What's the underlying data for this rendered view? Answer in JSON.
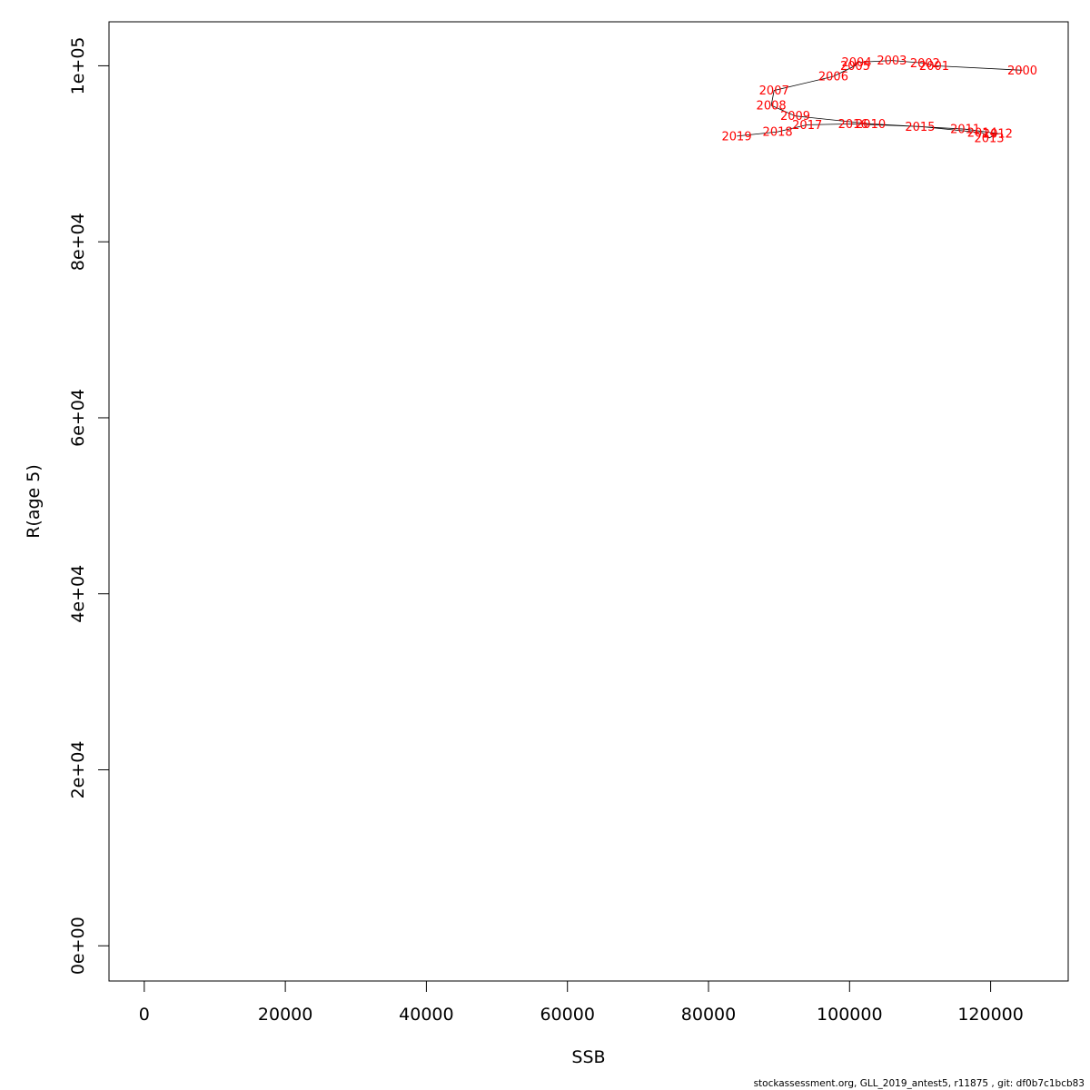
{
  "chart_data": {
    "type": "line",
    "title": "",
    "xlabel": "SSB",
    "ylabel": "R(age 5)",
    "xlim": [
      -5000,
      131000
    ],
    "ylim": [
      -4000,
      105000
    ],
    "x_ticks": [
      0,
      20000,
      40000,
      60000,
      80000,
      100000,
      120000
    ],
    "x_tick_labels": [
      "0",
      "20000",
      "40000",
      "60000",
      "80000",
      "100000",
      "120000"
    ],
    "y_ticks": [
      0,
      20000,
      40000,
      60000,
      80000,
      100000
    ],
    "y_tick_labels": [
      "0e+00",
      "2e+04",
      "4e+04",
      "6e+04",
      "8e+04",
      "1e+05"
    ],
    "grid": false,
    "line_color": "#000000",
    "label_color": "#ff0000",
    "series": [
      {
        "points": [
          {
            "label": "2000",
            "x": 124500,
            "y": 99500
          },
          {
            "label": "2001",
            "x": 112000,
            "y": 100000
          },
          {
            "label": "2002",
            "x": 110700,
            "y": 100300
          },
          {
            "label": "2003",
            "x": 106000,
            "y": 100600
          },
          {
            "label": "2004",
            "x": 101000,
            "y": 100400
          },
          {
            "label": "2005",
            "x": 100800,
            "y": 100000
          },
          {
            "label": "2006",
            "x": 97700,
            "y": 98800
          },
          {
            "label": "2007",
            "x": 89300,
            "y": 97200
          },
          {
            "label": "2008",
            "x": 88900,
            "y": 95500
          },
          {
            "label": "2009",
            "x": 92300,
            "y": 94300
          },
          {
            "label": "2010",
            "x": 103000,
            "y": 93400
          },
          {
            "label": "2011",
            "x": 116400,
            "y": 92800
          },
          {
            "label": "2012",
            "x": 121000,
            "y": 92300
          },
          {
            "label": "2013",
            "x": 119800,
            "y": 91800
          },
          {
            "label": "2014",
            "x": 118800,
            "y": 92400
          },
          {
            "label": "2015",
            "x": 110000,
            "y": 93100
          },
          {
            "label": "2016",
            "x": 100500,
            "y": 93400
          },
          {
            "label": "2017",
            "x": 94000,
            "y": 93300
          },
          {
            "label": "2018",
            "x": 89800,
            "y": 92500
          },
          {
            "label": "2019",
            "x": 84000,
            "y": 92000
          }
        ]
      }
    ]
  },
  "footer": "stockassessment.org, GLL_2019_antest5, r11875 , git: df0b7c1bcb83"
}
